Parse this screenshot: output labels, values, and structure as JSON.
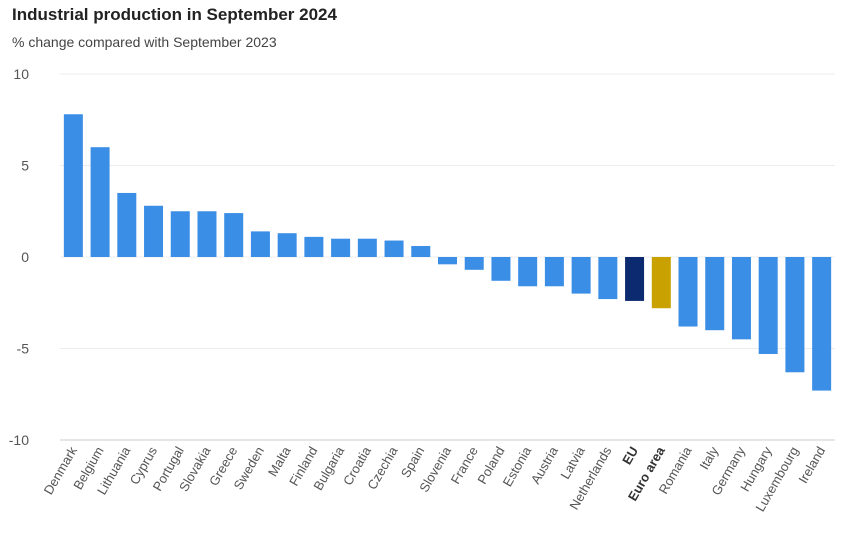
{
  "chart_data": {
    "type": "bar",
    "title": "Industrial production in September 2024",
    "subtitle": "% change compared with September 2023",
    "xlabel": "",
    "ylabel": "",
    "ylim": [
      -10,
      10
    ],
    "yticks": [
      10,
      5,
      0,
      -5,
      -10
    ],
    "grid": true,
    "categories": [
      "Denmark",
      "Belgium",
      "Lithuania",
      "Cyprus",
      "Portugal",
      "Slovakia",
      "Greece",
      "Sweden",
      "Malta",
      "Finland",
      "Bulgaria",
      "Croatia",
      "Czechia",
      "Spain",
      "Slovenia",
      "France",
      "Poland",
      "Estonia",
      "Austria",
      "Latvia",
      "Netherlands",
      "EU",
      "Euro area",
      "Romania",
      "Italy",
      "Germany",
      "Hungary",
      "Luxembourg",
      "Ireland"
    ],
    "values": [
      7.8,
      6.0,
      3.5,
      2.8,
      2.5,
      2.5,
      2.4,
      1.4,
      1.3,
      1.1,
      1.0,
      1.0,
      0.9,
      0.6,
      -0.4,
      -0.7,
      -1.3,
      -1.6,
      -1.6,
      -2.0,
      -2.3,
      -2.4,
      -2.8,
      -3.8,
      -4.0,
      -4.5,
      -5.3,
      -6.3,
      -7.3
    ],
    "highlight": {
      "EU": "#0b2a6f",
      "Euro area": "#c9a100"
    },
    "bold_labels": [
      "EU",
      "Euro area"
    ],
    "colors": {
      "bar": "#3b8ee6",
      "grid": "#ececec",
      "axis": "#cccccc"
    }
  }
}
